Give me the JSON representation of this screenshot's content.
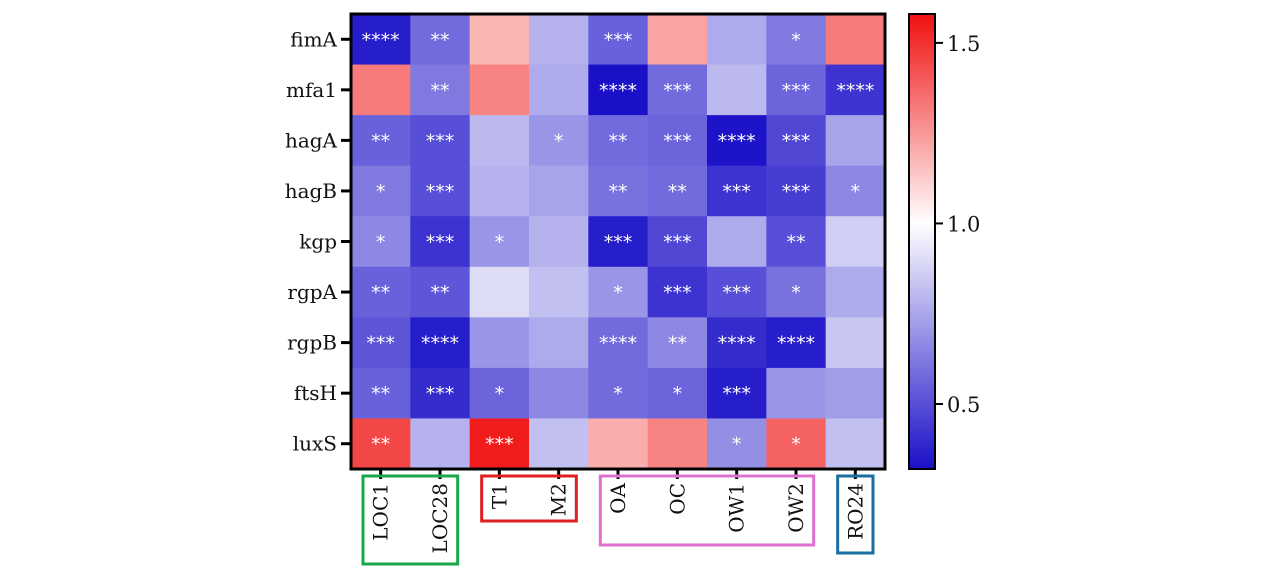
{
  "chart_data": {
    "type": "heatmap",
    "rows": [
      "fimA",
      "mfa1",
      "hagA",
      "hagB",
      "kgp",
      "rgpA",
      "rgpB",
      "ftsH",
      "luxS"
    ],
    "columns": [
      "LOC1",
      "LOC28",
      "T1",
      "M2",
      "OA",
      "OC",
      "OW1",
      "OW2",
      "RO24"
    ],
    "values": [
      [
        0.36,
        0.58,
        1.18,
        0.78,
        0.55,
        1.22,
        0.76,
        0.62,
        1.32
      ],
      [
        1.32,
        0.62,
        1.3,
        0.76,
        0.3,
        0.58,
        0.8,
        0.56,
        0.42
      ],
      [
        0.55,
        0.5,
        0.8,
        0.7,
        0.58,
        0.56,
        0.33,
        0.48,
        0.74
      ],
      [
        0.62,
        0.5,
        0.78,
        0.74,
        0.6,
        0.58,
        0.42,
        0.45,
        0.66
      ],
      [
        0.66,
        0.42,
        0.7,
        0.78,
        0.36,
        0.48,
        0.76,
        0.5,
        0.86
      ],
      [
        0.55,
        0.52,
        0.9,
        0.82,
        0.7,
        0.42,
        0.5,
        0.6,
        0.76
      ],
      [
        0.52,
        0.36,
        0.7,
        0.76,
        0.58,
        0.66,
        0.4,
        0.36,
        0.84
      ],
      [
        0.55,
        0.4,
        0.56,
        0.66,
        0.58,
        0.56,
        0.36,
        0.7,
        0.72
      ],
      [
        1.45,
        0.78,
        1.55,
        0.82,
        1.2,
        1.3,
        0.68,
        1.38,
        0.82
      ]
    ],
    "significance": [
      [
        "****",
        "**",
        "",
        "",
        "***",
        "",
        "",
        "*",
        ""
      ],
      [
        "",
        "**",
        "",
        "",
        "****",
        "***",
        "",
        "***",
        "****"
      ],
      [
        "**",
        "***",
        "",
        "*",
        "**",
        "***",
        "****",
        "***",
        ""
      ],
      [
        "*",
        "***",
        "",
        "",
        "**",
        "**",
        "***",
        "***",
        "*"
      ],
      [
        "*",
        "***",
        "*",
        "",
        "***",
        "***",
        "",
        "**",
        ""
      ],
      [
        "**",
        "**",
        "",
        "",
        "*",
        "***",
        "***",
        "*",
        ""
      ],
      [
        "***",
        "****",
        "",
        "",
        "****",
        "**",
        "****",
        "****",
        ""
      ],
      [
        "**",
        "***",
        "*",
        "",
        "*",
        "*",
        "***",
        "",
        ""
      ],
      [
        "**",
        "",
        "***",
        "",
        "",
        "",
        "*",
        "*",
        ""
      ]
    ],
    "colorbar": {
      "min": 0.32,
      "mid": 1.0,
      "max": 1.58,
      "ticks": [
        "0.5",
        "1.0",
        "1.5"
      ],
      "low_color": "#1a10c8",
      "mid_color": "#ffffff",
      "high_color": "#f01010"
    },
    "column_groups": [
      {
        "columns": [
          "LOC1",
          "LOC28"
        ],
        "color": "#1aa84a"
      },
      {
        "columns": [
          "T1",
          "M2"
        ],
        "color": "#e02020"
      },
      {
        "columns": [
          "OA",
          "OC",
          "OW1",
          "OW2"
        ],
        "color": "#e070d0"
      },
      {
        "columns": [
          "RO24"
        ],
        "color": "#1a6f9e"
      }
    ],
    "title": "",
    "xlabel": "",
    "ylabel": ""
  }
}
